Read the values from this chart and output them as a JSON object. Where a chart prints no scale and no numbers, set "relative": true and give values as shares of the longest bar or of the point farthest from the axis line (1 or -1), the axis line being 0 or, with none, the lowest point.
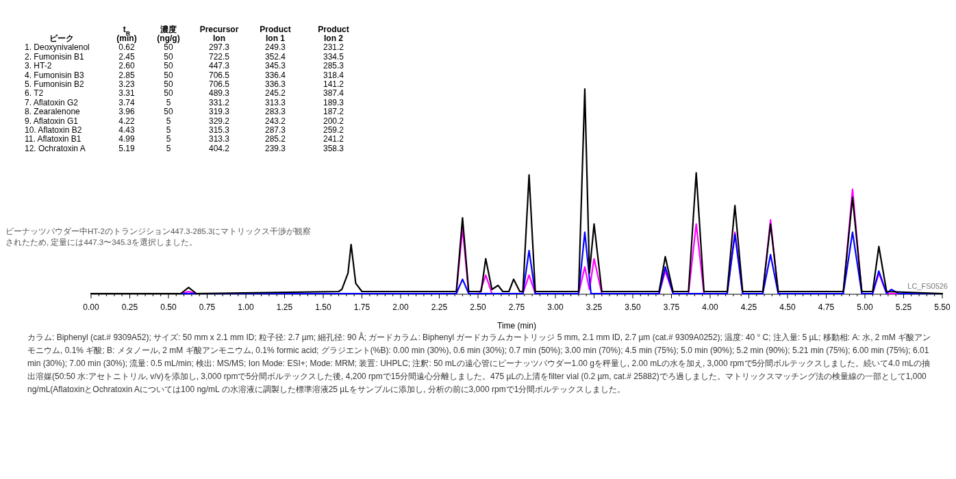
{
  "chart_data": {
    "type": "line",
    "relative": true,
    "xlabel": "Time (min)",
    "xlim": [
      0,
      5.5
    ],
    "xticks": [
      {
        "value": 0,
        "label": "0.00"
      },
      {
        "value": 0.05,
        "label": null
      },
      {
        "value": 0.1,
        "label": null
      },
      {
        "value": 0.15,
        "label": null
      },
      {
        "value": 0.2,
        "label": null
      },
      {
        "value": 0.25,
        "label": "0.25"
      },
      {
        "value": 0.3,
        "label": null
      },
      {
        "value": 0.35,
        "label": null
      },
      {
        "value": 0.4,
        "label": null
      },
      {
        "value": 0.45,
        "label": null
      },
      {
        "value": 0.5,
        "label": "0.50"
      },
      {
        "value": 0.55,
        "label": null
      },
      {
        "value": 0.6,
        "label": null
      },
      {
        "value": 0.65,
        "label": null
      },
      {
        "value": 0.7,
        "label": null
      },
      {
        "value": 0.75,
        "label": "0.75"
      },
      {
        "value": 0.8,
        "label": null
      },
      {
        "value": 0.85,
        "label": null
      },
      {
        "value": 0.9,
        "label": null
      },
      {
        "value": 0.95,
        "label": null
      },
      {
        "value": 1,
        "label": "1.00"
      },
      {
        "value": 1.05,
        "label": null
      },
      {
        "value": 1.1,
        "label": null
      },
      {
        "value": 1.15,
        "label": null
      },
      {
        "value": 1.2,
        "label": null
      },
      {
        "value": 1.25,
        "label": "1.25"
      },
      {
        "value": 1.3,
        "label": null
      },
      {
        "value": 1.35,
        "label": null
      },
      {
        "value": 1.4,
        "label": null
      },
      {
        "value": 1.45,
        "label": null
      },
      {
        "value": 1.5,
        "label": "1.50"
      },
      {
        "value": 1.55,
        "label": null
      },
      {
        "value": 1.6,
        "label": null
      },
      {
        "value": 1.65,
        "label": null
      },
      {
        "value": 1.7,
        "label": null
      },
      {
        "value": 1.75,
        "label": "1.75"
      },
      {
        "value": 1.8,
        "label": null
      },
      {
        "value": 1.85,
        "label": null
      },
      {
        "value": 1.9,
        "label": null
      },
      {
        "value": 1.95,
        "label": null
      },
      {
        "value": 2,
        "label": "2.00"
      },
      {
        "value": 2.05,
        "label": null
      },
      {
        "value": 2.1,
        "label": null
      },
      {
        "value": 2.15,
        "label": null
      },
      {
        "value": 2.2,
        "label": null
      },
      {
        "value": 2.25,
        "label": "2.25"
      },
      {
        "value": 2.3,
        "label": null
      },
      {
        "value": 2.35,
        "label": null
      },
      {
        "value": 2.4,
        "label": null
      },
      {
        "value": 2.45,
        "label": null
      },
      {
        "value": 2.5,
        "label": "2.50"
      },
      {
        "value": 2.55,
        "label": null
      },
      {
        "value": 2.6,
        "label": null
      },
      {
        "value": 2.65,
        "label": null
      },
      {
        "value": 2.7,
        "label": null
      },
      {
        "value": 2.75,
        "label": "2.75"
      },
      {
        "value": 2.8,
        "label": null
      },
      {
        "value": 2.85,
        "label": null
      },
      {
        "value": 2.9,
        "label": null
      },
      {
        "value": 2.95,
        "label": null
      },
      {
        "value": 3,
        "label": "3.00"
      },
      {
        "value": 3.05,
        "label": null
      },
      {
        "value": 3.1,
        "label": null
      },
      {
        "value": 3.15,
        "label": null
      },
      {
        "value": 3.2,
        "label": null
      },
      {
        "value": 3.25,
        "label": "3.25"
      },
      {
        "value": 3.3,
        "label": null
      },
      {
        "value": 3.35,
        "label": null
      },
      {
        "value": 3.4,
        "label": null
      },
      {
        "value": 3.45,
        "label": null
      },
      {
        "value": 3.5,
        "label": "3.50"
      },
      {
        "value": 3.55,
        "label": null
      },
      {
        "value": 3.6,
        "label": null
      },
      {
        "value": 3.65,
        "label": null
      },
      {
        "value": 3.7,
        "label": null
      },
      {
        "value": 3.75,
        "label": "3.75"
      },
      {
        "value": 3.8,
        "label": null
      },
      {
        "value": 3.85,
        "label": null
      },
      {
        "value": 3.9,
        "label": null
      },
      {
        "value": 3.95,
        "label": null
      },
      {
        "value": 4,
        "label": "4.00"
      },
      {
        "value": 4.05,
        "label": null
      },
      {
        "value": 4.1,
        "label": null
      },
      {
        "value": 4.15,
        "label": null
      },
      {
        "value": 4.2,
        "label": null
      },
      {
        "value": 4.25,
        "label": "4.25"
      },
      {
        "value": 4.3,
        "label": null
      },
      {
        "value": 4.35,
        "label": null
      },
      {
        "value": 4.4,
        "label": null
      },
      {
        "value": 4.45,
        "label": null
      },
      {
        "value": 4.5,
        "label": "4.50"
      },
      {
        "value": 4.55,
        "label": null
      },
      {
        "value": 4.6,
        "label": null
      },
      {
        "value": 4.65,
        "label": null
      },
      {
        "value": 4.7,
        "label": null
      },
      {
        "value": 4.75,
        "label": "4.75"
      },
      {
        "value": 4.8,
        "label": null
      },
      {
        "value": 4.85,
        "label": null
      },
      {
        "value": 4.9,
        "label": null
      },
      {
        "value": 4.95,
        "label": null
      },
      {
        "value": 5,
        "label": "5.00"
      },
      {
        "value": 5.05,
        "label": null
      },
      {
        "value": 5.1,
        "label": null
      },
      {
        "value": 5.15,
        "label": null
      },
      {
        "value": 5.2,
        "label": null
      },
      {
        "value": 5.25,
        "label": "5.25"
      },
      {
        "value": 5.3,
        "label": null
      },
      {
        "value": 5.35,
        "label": null
      },
      {
        "value": 5.4,
        "label": null
      },
      {
        "value": 5.45,
        "label": null
      },
      {
        "value": 5.5,
        "label": "5.50"
      }
    ],
    "series": [
      {
        "color": "#ff00ff",
        "x": [
          0,
          0.58,
          0.63,
          0.68,
          2.36,
          2.4,
          2.44,
          2.51,
          2.55,
          2.59,
          2.79,
          2.83,
          2.87,
          3.15,
          3.19,
          3.22,
          3.25,
          3.3,
          3.67,
          3.71,
          3.76,
          3.86,
          3.91,
          3.96,
          4.11,
          4.16,
          4.21,
          4.34,
          4.39,
          4.44,
          4.86,
          4.92,
          4.98,
          5.05,
          5.09,
          5.14,
          5.5
        ],
        "values": [
          0,
          0,
          0.01,
          0,
          0,
          0.32,
          0,
          0,
          0.09,
          0,
          0,
          0.09,
          0,
          0,
          0.13,
          0.02,
          0.17,
          0,
          0,
          0.11,
          0,
          0,
          0.34,
          0,
          0,
          0.3,
          0,
          0,
          0.36,
          0,
          0,
          0.51,
          0,
          0,
          0.1,
          0,
          0
        ]
      },
      {
        "color": "#0000ff",
        "x": [
          0,
          2.36,
          2.4,
          2.44,
          2.79,
          2.83,
          2.87,
          3.15,
          3.19,
          3.23,
          3.67,
          3.71,
          3.76,
          4.11,
          4.16,
          4.21,
          4.34,
          4.39,
          4.44,
          4.86,
          4.92,
          4.98,
          5.05,
          5.09,
          5.14,
          5.17,
          5.22,
          5.5
        ],
        "values": [
          0,
          0,
          0.07,
          0,
          0,
          0.21,
          0,
          0,
          0.3,
          0,
          0,
          0.13,
          0,
          0,
          0.29,
          0,
          0,
          0.19,
          0,
          0,
          0.3,
          0,
          0,
          0.11,
          0,
          0.02,
          0,
          0
        ]
      },
      {
        "color": "#000000",
        "x": [
          0,
          0.58,
          0.63,
          0.68,
          1.6,
          1.62,
          1.66,
          1.68,
          1.71,
          1.75,
          2.36,
          2.4,
          2.44,
          2.52,
          2.55,
          2.59,
          2.63,
          2.66,
          2.7,
          2.73,
          2.77,
          2.79,
          2.83,
          2.87,
          3.15,
          3.19,
          3.22,
          3.25,
          3.3,
          3.67,
          3.71,
          3.76,
          3.86,
          3.91,
          3.96,
          4.11,
          4.16,
          4.21,
          4.34,
          4.39,
          4.44,
          4.86,
          4.92,
          4.98,
          5.05,
          5.09,
          5.14,
          5.5
        ],
        "values": [
          0,
          0,
          0.03,
          0,
          0.01,
          0.02,
          0.1,
          0.24,
          0.05,
          0.01,
          0.01,
          0.37,
          0.01,
          0.01,
          0.17,
          0.02,
          0.04,
          0.01,
          0.01,
          0.07,
          0.01,
          0.01,
          0.58,
          0.01,
          0.01,
          1.0,
          0.1,
          0.34,
          0.01,
          0.01,
          0.18,
          0.01,
          0.01,
          0.59,
          0.01,
          0.01,
          0.43,
          0.01,
          0.01,
          0.34,
          0.01,
          0.01,
          0.47,
          0.01,
          0.01,
          0.23,
          0.01,
          0
        ]
      }
    ],
    "annotations": [
      "ピーク",
      "t$_{R}$\n(min)",
      "濃度\n(ng/g)",
      "Precursor\nIon",
      "Product\nIon 1",
      "Product\nIon 2",
      "1. Deoxynivalenol",
      "0.62",
      "50",
      "297.3",
      "249.3",
      "231.2",
      "2. Fumonisin B1",
      "2.45",
      "50",
      "722.5",
      "352.4",
      "334.5",
      "3. HT-2",
      "2.60",
      "50",
      "447.3",
      "345.3",
      "285.3",
      "4. Fumonisin B3",
      "2.85",
      "50",
      "706.5",
      "336.4",
      "318.4",
      "5. Fumonisin B2",
      "3.23",
      "50",
      "706.5",
      "336.3",
      "141.2",
      "6. T2",
      "3.31",
      "50",
      "489.3",
      "245.2",
      "387.4",
      "7. Aflatoxin G2",
      "3.74",
      "5",
      "331.2",
      "313.3",
      "189.3",
      "8. Zearalenone",
      "3.96",
      "50",
      "319.3",
      "283.3",
      "187.2",
      "9. Aflatoxin G1",
      "4.22",
      "5",
      "329.2",
      "243.2",
      "200.2",
      "10. Aflatoxin B2",
      "4.43",
      "5",
      "315.3",
      "287.3",
      "259.2",
      "11. Aflatoxin B1",
      "4.99",
      "5",
      "313.3",
      "285.2",
      "241.2",
      "12. Ochratoxin A",
      "5.19",
      "5",
      "404.2",
      "239.3",
      "358.3",
      "ピーナッツパウダー中HT-2のトランジション447.3-285.3にマトリックス干渉が観察されたため, 定量には447.3〜345.3を選択しました。",
      "LC_FS0526",
      "カラム: Biphenyl (cat.# 9309A52); サイズ: 50 mm x 2.1 mm ID; 粒子径: 2.7 µm; 細孔径: 90 Å; ガードカラム: Biphenyl ガードカラムカートリッジ 5 mm, 2.1 mm ID, 2.7 µm (cat.# 9309A0252); 温度: 40 ° C; 注入量: 5 µL; 移動相: A: 水, 2 mM ギ酸アンモニウム, 0.1% ギ酸; B: メタノール, 2 mM ギ酸アンモニウム, 0.1% formic acid; グラジエント(%B): 0.00 min (30%), 0.6 min (30%); 0.7 min (50%); 3.00 min (70%); 4.5 min (75%); 5.0 min (90%); 5.2 min (90%); 5.21 min (75%); 6.00 min (75%); 6.01 min (30%); 7.00 min (30%); 流量: 0.5 mL/min; 検出: MS/MS; Ion Mode: ESI+; Mode: MRM; 装置: UHPLC; 注釈: 50 mLの遠心管にピーナッツパウダー1.00 gを秤量し, 2.00 mLの水を加え, 3,000 rpmで5分間ボルテックスしました。続いて4.0 mLの抽出溶媒(50:50 水:アセトニトリル, v/v)を添加し, 3,000 rpmで5分間ボルテックスした後, 4,200 rpmで15分間遠心分離しました。475 µLの上清をfilter vial (0.2 µm, cat.# 25882)でろ過しました。マトリックスマッチング法の検量線の一部として1,000 ng/mL(AflatoxinとOchratoxin Aについては100 ng/mL の水溶液に調製した標準溶液25 µLをサンプルに添加し, 分析の前に3,000 rpmで1分間ボルテックスしました。"
    ]
  }
}
